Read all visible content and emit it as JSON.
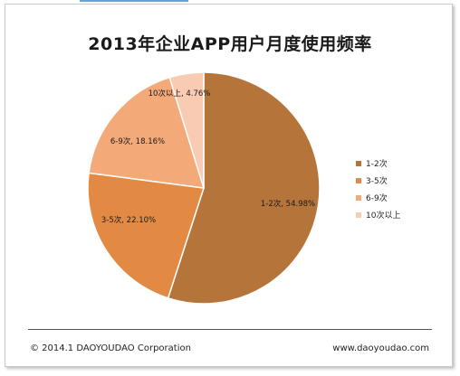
{
  "chart_data": {
    "type": "pie",
    "title": "2013年企业APP用户月度使用频率",
    "categories": [
      "1-2次",
      "3-5次",
      "6-9次",
      "10次以上"
    ],
    "values": [
      54.98,
      22.1,
      18.16,
      4.76
    ],
    "data_labels": [
      "1-2次, 54.98%",
      "3-5次, 22.10%",
      "6-9次, 18.16%",
      "10次以上, 4.76%"
    ],
    "colors": [
      "#b5743a",
      "#e28a43",
      "#f4a978",
      "#f9cbb3"
    ],
    "legend_position": "right"
  },
  "footer": {
    "copyright": "© 2014.1 DAOYOUDAO Corporation",
    "website": "www.daoyoudao.com"
  }
}
